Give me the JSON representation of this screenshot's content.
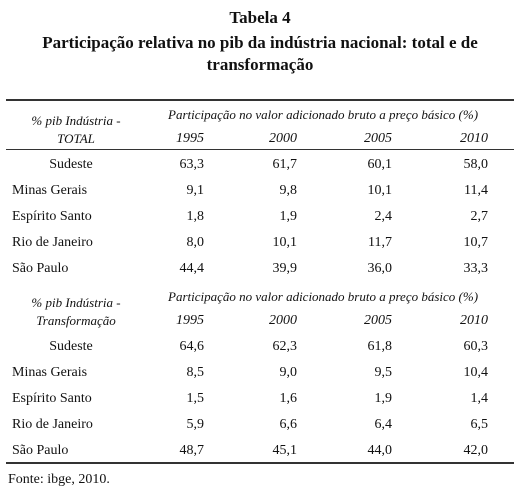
{
  "header": {
    "title": "Tabela 4",
    "subtitle": "Participação relativa no pib da indústria nacional: total e de transformação"
  },
  "sections": [
    {
      "label": [
        "% pib Indústria -",
        "TOTAL"
      ],
      "span_header": "Participação no valor adicionado bruto a preço básico (%)",
      "years": [
        "1995",
        "2000",
        "2005",
        "2010"
      ],
      "rows": [
        [
          "Sudeste",
          "63,3",
          "61,7",
          "60,1",
          "58,0"
        ],
        [
          "Minas Gerais",
          "9,1",
          "9,8",
          "10,1",
          "11,4"
        ],
        [
          "Espírito Santo",
          "1,8",
          "1,9",
          "2,4",
          "2,7"
        ],
        [
          "Rio de Janeiro",
          "8,0",
          "10,1",
          "11,7",
          "10,7"
        ],
        [
          "São Paulo",
          "44,4",
          "39,9",
          "36,0",
          "33,3"
        ]
      ]
    },
    {
      "label": [
        "% pib Indústria -",
        "Transformação"
      ],
      "span_header": "Participação no valor adicionado bruto a preço básico (%)",
      "years": [
        "1995",
        "2000",
        "2005",
        "2010"
      ],
      "rows": [
        [
          "Sudeste",
          "64,6",
          "62,3",
          "61,8",
          "60,3"
        ],
        [
          "Minas Gerais",
          "8,5",
          "9,0",
          "9,5",
          "10,4"
        ],
        [
          "Espírito Santo",
          "1,5",
          "1,6",
          "1,9",
          "1,4"
        ],
        [
          "Rio de Janeiro",
          "5,9",
          "6,6",
          "6,4",
          "6,5"
        ],
        [
          "São Paulo",
          "48,7",
          "45,1",
          "44,0",
          "42,0"
        ]
      ]
    }
  ],
  "footer": "Fonte: ibge, 2010."
}
